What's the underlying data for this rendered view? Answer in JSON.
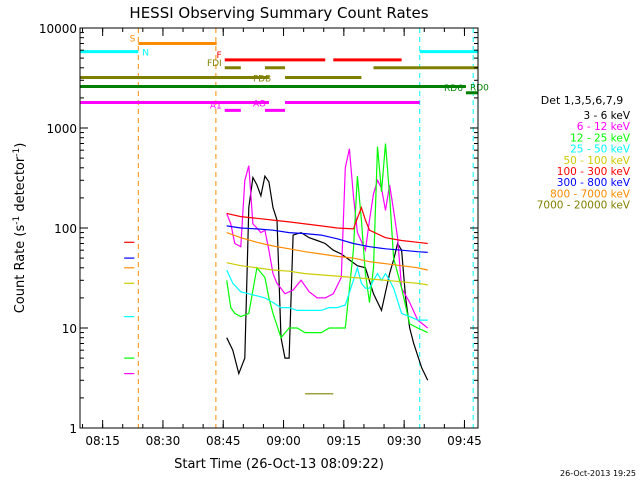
{
  "chart_data": {
    "type": "line",
    "title": "HESSI Observing Summary Count Rates",
    "xlabel": "Start Time (26-Oct-13 08:09:22)",
    "ylabel_main": "Count Rate (s",
    "ylabel_sup1": "-1",
    "ylabel_mid": " detector",
    "ylabel_sup2": "-1",
    "ylabel_end": ")",
    "x_units": "minutes after 08:09:22",
    "xlim": [
      0,
      99
    ],
    "ylim": [
      1,
      10000
    ],
    "yscale": "log",
    "x_ticks": [
      {
        "t": 5.63,
        "label": "08:15"
      },
      {
        "t": 20.63,
        "label": "08:30"
      },
      {
        "t": 35.63,
        "label": "08:45"
      },
      {
        "t": 50.63,
        "label": "09:00"
      },
      {
        "t": 65.63,
        "label": "09:15"
      },
      {
        "t": 80.63,
        "label": "09:30"
      },
      {
        "t": 95.63,
        "label": "09:45"
      }
    ],
    "y_ticks": [
      {
        "v": 1,
        "label": "1"
      },
      {
        "v": 10,
        "label": "10"
      },
      {
        "v": 100,
        "label": "100"
      },
      {
        "v": 1000,
        "label": "1000"
      },
      {
        "v": 10000,
        "label": "10000"
      }
    ],
    "legend_title": "Det 1,3,5,6,7,9",
    "legend_position": "right",
    "series": [
      {
        "name": "3 - 6 keV",
        "color": "#000000",
        "segments": [
          [
            [
              36.5,
              8
            ],
            [
              38,
              6
            ],
            [
              39.5,
              3.5
            ],
            [
              41,
              5
            ],
            [
              42,
              160
            ],
            [
              43,
              320
            ],
            [
              44,
              270
            ],
            [
              45,
              210
            ],
            [
              46,
              330
            ],
            [
              47,
              290
            ],
            [
              48,
              160
            ],
            [
              49,
              120
            ],
            [
              50,
              8
            ],
            [
              51,
              5
            ],
            [
              52,
              5
            ],
            [
              53,
              85
            ],
            [
              55,
              90
            ],
            [
              57,
              80
            ],
            [
              59,
              75
            ],
            [
              61,
              70
            ],
            [
              63,
              60
            ],
            [
              65,
              55
            ],
            [
              67,
              48
            ],
            [
              69,
              42
            ],
            [
              71,
              40
            ],
            [
              73,
              22
            ],
            [
              75,
              15
            ],
            [
              77,
              35
            ],
            [
              78,
              48
            ],
            [
              79,
              70
            ],
            [
              80,
              60
            ],
            [
              81,
              20
            ],
            [
              82,
              10
            ],
            [
              83,
              7
            ],
            [
              85,
              4
            ],
            [
              86.5,
              3
            ]
          ]
        ]
      },
      {
        "name": "6 - 12 keV",
        "color": "#ff00ff",
        "segments": [
          [
            [
              11,
              3.5
            ],
            [
              13.5,
              3.5
            ]
          ],
          [
            [
              36.5,
              140
            ],
            [
              37.5,
              110
            ],
            [
              38.5,
              70
            ],
            [
              40,
              65
            ],
            [
              41,
              300
            ],
            [
              42,
              420
            ],
            [
              43,
              110
            ],
            [
              44,
              100
            ],
            [
              45,
              90
            ],
            [
              46,
              95
            ],
            [
              47,
              60
            ],
            [
              48,
              35
            ],
            [
              49,
              28
            ],
            [
              51,
              22
            ],
            [
              53,
              24
            ],
            [
              55,
              30
            ],
            [
              57,
              23
            ],
            [
              59,
              20
            ],
            [
              61,
              20
            ],
            [
              63,
              22
            ],
            [
              65,
              32
            ],
            [
              66,
              400
            ],
            [
              67,
              620
            ],
            [
              68,
              210
            ],
            [
              69,
              90
            ],
            [
              71,
              60
            ],
            [
              72,
              120
            ],
            [
              73,
              220
            ],
            [
              74,
              300
            ],
            [
              75,
              250
            ],
            [
              76,
              150
            ],
            [
              77,
              270
            ],
            [
              78,
              150
            ],
            [
              79,
              80
            ],
            [
              80,
              25
            ],
            [
              82,
              18
            ],
            [
              84,
              12
            ],
            [
              86.5,
              10
            ]
          ]
        ]
      },
      {
        "name": "12 - 25 keV",
        "color": "#00ff00",
        "segments": [
          [
            [
              11,
              5
            ],
            [
              13.5,
              5
            ]
          ],
          [
            [
              36.5,
              30
            ],
            [
              37.5,
              16
            ],
            [
              38.5,
              14
            ],
            [
              40,
              13
            ],
            [
              42,
              14
            ],
            [
              44,
              40
            ],
            [
              46,
              32
            ],
            [
              47,
              20
            ],
            [
              48,
              14
            ],
            [
              50,
              8
            ],
            [
              52,
              10
            ],
            [
              54,
              10
            ],
            [
              56,
              9
            ],
            [
              58,
              9
            ],
            [
              60,
              9
            ],
            [
              62,
              10
            ],
            [
              64,
              10
            ],
            [
              66,
              10
            ],
            [
              68,
              60
            ],
            [
              69,
              330
            ],
            [
              70,
              120
            ],
            [
              71,
              35
            ],
            [
              72,
              18
            ],
            [
              73,
              40
            ],
            [
              74,
              650
            ],
            [
              75,
              230
            ],
            [
              76,
              700
            ],
            [
              77,
              210
            ],
            [
              78,
              50
            ],
            [
              80,
              25
            ],
            [
              82,
              11
            ],
            [
              84,
              10
            ],
            [
              86.5,
              9
            ]
          ]
        ]
      },
      {
        "name": "25 - 50 keV",
        "color": "#00ffff",
        "segments": [
          [
            [
              11,
              13
            ],
            [
              13.5,
              13
            ]
          ],
          [
            [
              36.5,
              38
            ],
            [
              38,
              28
            ],
            [
              40,
              23
            ],
            [
              42,
              22
            ],
            [
              44,
              21
            ],
            [
              46,
              20
            ],
            [
              48,
              18
            ],
            [
              50,
              16
            ],
            [
              52,
              16
            ],
            [
              54,
              15
            ],
            [
              56,
              15
            ],
            [
              58,
              15
            ],
            [
              60,
              15
            ],
            [
              62,
              16
            ],
            [
              64,
              16
            ],
            [
              66,
              17
            ],
            [
              68,
              30
            ],
            [
              69,
              40
            ],
            [
              70,
              28
            ],
            [
              71,
              25
            ],
            [
              72,
              25
            ],
            [
              73,
              30
            ],
            [
              74,
              35
            ],
            [
              75,
              30
            ],
            [
              76,
              35
            ],
            [
              77,
              30
            ],
            [
              78,
              25
            ],
            [
              80,
              14
            ],
            [
              82,
              13
            ],
            [
              84,
              12
            ],
            [
              86.5,
              12
            ]
          ]
        ]
      },
      {
        "name": "50 - 100 keV",
        "color": "#cccc00",
        "segments": [
          [
            [
              11,
              28
            ],
            [
              13.5,
              28
            ]
          ],
          [
            [
              36.5,
              45
            ],
            [
              40,
              42
            ],
            [
              44,
              40
            ],
            [
              48,
              38
            ],
            [
              52,
              37
            ],
            [
              56,
              35
            ],
            [
              60,
              34
            ],
            [
              64,
              33
            ],
            [
              68,
              32
            ],
            [
              72,
              31
            ],
            [
              76,
              30
            ],
            [
              80,
              29
            ],
            [
              84,
              28
            ],
            [
              86.5,
              27
            ]
          ]
        ]
      },
      {
        "name": "100 - 300 keV",
        "color": "#ff0000",
        "segments": [
          [
            [
              11,
              72
            ],
            [
              13.5,
              72
            ]
          ],
          [
            [
              36.5,
              140
            ],
            [
              40,
              130
            ],
            [
              44,
              125
            ],
            [
              48,
              120
            ],
            [
              52,
              115
            ],
            [
              56,
              110
            ],
            [
              60,
              105
            ],
            [
              64,
              100
            ],
            [
              68,
              98
            ],
            [
              70,
              160
            ],
            [
              71,
              120
            ],
            [
              72,
              95
            ],
            [
              76,
              80
            ],
            [
              80,
              75
            ],
            [
              84,
              72
            ],
            [
              86.5,
              70
            ]
          ]
        ]
      },
      {
        "name": "300 - 800 keV",
        "color": "#0000ff",
        "segments": [
          [
            [
              11,
              50
            ],
            [
              13.5,
              50
            ]
          ],
          [
            [
              36.5,
              105
            ],
            [
              40,
              100
            ],
            [
              44,
              98
            ],
            [
              48,
              95
            ],
            [
              52,
              90
            ],
            [
              56,
              88
            ],
            [
              60,
              85
            ],
            [
              64,
              78
            ],
            [
              68,
              70
            ],
            [
              72,
              65
            ],
            [
              76,
              62
            ],
            [
              80,
              60
            ],
            [
              84,
              58
            ],
            [
              86.5,
              57
            ]
          ]
        ]
      },
      {
        "name": "800 - 7000 keV",
        "color": "#ff8c00",
        "segments": [
          [
            [
              11,
              40
            ],
            [
              13.5,
              40
            ]
          ],
          [
            [
              36.5,
              90
            ],
            [
              40,
              80
            ],
            [
              44,
              72
            ],
            [
              48,
              66
            ],
            [
              52,
              62
            ],
            [
              56,
              58
            ],
            [
              60,
              55
            ],
            [
              64,
              52
            ],
            [
              68,
              50
            ],
            [
              72,
              46
            ],
            [
              76,
              44
            ],
            [
              80,
              42
            ],
            [
              84,
              40
            ],
            [
              86.5,
              38
            ]
          ]
        ]
      },
      {
        "name": "7000 - 20000 keV",
        "color": "#808000",
        "segments": [
          [
            [
              56,
              2.2
            ],
            [
              63,
              2.2
            ]
          ]
        ]
      }
    ],
    "flags": [
      {
        "label": "S",
        "color": "#ff8c00",
        "y": 7000,
        "x1": 14.5,
        "x2": 34,
        "label_side": "left"
      },
      {
        "label": "N",
        "color": "#00ffff",
        "y": 5800,
        "x1": 0,
        "x2": 14.5,
        "label_side": "right"
      },
      {
        "label": "N",
        "color": "#00ffff",
        "y": 5800,
        "x1": 84.5,
        "x2": 99,
        "label_side": "none"
      },
      {
        "label": "F",
        "color": "#ff0000",
        "y": 4800,
        "x1": 36,
        "x2": 61,
        "label_side": "left"
      },
      {
        "label": "",
        "color": "#ff0000",
        "y": 4800,
        "x1": 63,
        "x2": 80,
        "label_side": "none"
      },
      {
        "label": "FDI",
        "color": "#808000",
        "y": 4000,
        "x1": 36,
        "x2": 40,
        "label_side": "left"
      },
      {
        "label": "",
        "color": "#808000",
        "y": 4000,
        "x1": 46,
        "x2": 51,
        "label_side": "none"
      },
      {
        "label": "",
        "color": "#808000",
        "y": 4000,
        "x1": 73,
        "x2": 99,
        "label_side": "none"
      },
      {
        "label": "FDB",
        "color": "#808000",
        "y": 3200,
        "x1": 0,
        "x2": 47,
        "label_side": "inside"
      },
      {
        "label": "",
        "color": "#808000",
        "y": 3200,
        "x1": 51,
        "x2": 70,
        "label_side": "none"
      },
      {
        "label": "RD0",
        "color": "#008000",
        "y": 2600,
        "x1": 0,
        "x2": 96,
        "label_side": "right"
      },
      {
        "label": "RD6",
        "color": "#008000",
        "y": 2250,
        "x1": 96,
        "x2": 99,
        "label_side": "left"
      },
      {
        "label": "AO",
        "color": "#ff00ff",
        "y": 1800,
        "x1": 0,
        "x2": 47,
        "label_side": "inside"
      },
      {
        "label": "",
        "color": "#ff00ff",
        "y": 1800,
        "x1": 51,
        "x2": 84.5,
        "label_side": "none"
      },
      {
        "label": "A1",
        "color": "#ff00ff",
        "y": 1500,
        "x1": 36,
        "x2": 40,
        "label_side": "left"
      },
      {
        "label": "",
        "color": "#ff00ff",
        "y": 1500,
        "x1": 46,
        "x2": 51,
        "label_side": "none"
      }
    ],
    "vlines": [
      {
        "t": 14.5,
        "color": "#ff8c00"
      },
      {
        "t": 33.8,
        "color": "#ff8c00"
      },
      {
        "t": 84.5,
        "color": "#00ffff"
      },
      {
        "t": 97.8,
        "color": "#00ffff"
      }
    ],
    "footer": "26-Oct-2013 19:25"
  }
}
